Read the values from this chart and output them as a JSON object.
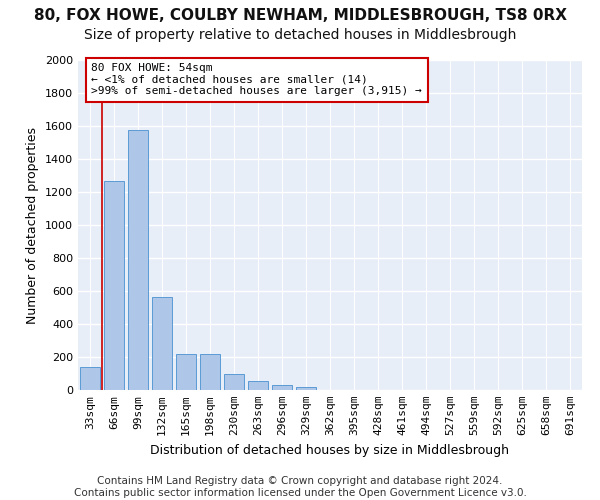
{
  "title": "80, FOX HOWE, COULBY NEWHAM, MIDDLESBROUGH, TS8 0RX",
  "subtitle": "Size of property relative to detached houses in Middlesbrough",
  "xlabel": "Distribution of detached houses by size in Middlesbrough",
  "ylabel": "Number of detached properties",
  "bar_values": [
    140,
    1265,
    1575,
    565,
    220,
    220,
    95,
    55,
    30,
    20,
    0,
    0,
    0,
    0,
    0,
    0,
    0,
    0,
    0,
    0,
    0
  ],
  "bar_labels": [
    "33sqm",
    "66sqm",
    "99sqm",
    "132sqm",
    "165sqm",
    "198sqm",
    "230sqm",
    "263sqm",
    "296sqm",
    "329sqm",
    "362sqm",
    "395sqm",
    "428sqm",
    "461sqm",
    "494sqm",
    "527sqm",
    "559sqm",
    "592sqm",
    "625sqm",
    "658sqm",
    "691sqm"
  ],
  "bar_color": "#aec6e8",
  "bar_edge_color": "#5b9bd5",
  "red_line_x": 0.5,
  "annotation_text": "80 FOX HOWE: 54sqm\n← <1% of detached houses are smaller (14)\n>99% of semi-detached houses are larger (3,915) →",
  "annotation_box_facecolor": "#ffffff",
  "annotation_box_edgecolor": "#cc0000",
  "ylim": [
    0,
    2000
  ],
  "yticks": [
    0,
    200,
    400,
    600,
    800,
    1000,
    1200,
    1400,
    1600,
    1800,
    2000
  ],
  "bg_color": "#e8eef8",
  "grid_color": "#ffffff",
  "title_fontsize": 11,
  "subtitle_fontsize": 10,
  "ylabel_fontsize": 9,
  "xlabel_fontsize": 9,
  "tick_fontsize": 8,
  "annotation_fontsize": 8,
  "footer_fontsize": 7.5,
  "footer_line1": "Contains HM Land Registry data © Crown copyright and database right 2024.",
  "footer_line2": "Contains public sector information licensed under the Open Government Licence v3.0."
}
